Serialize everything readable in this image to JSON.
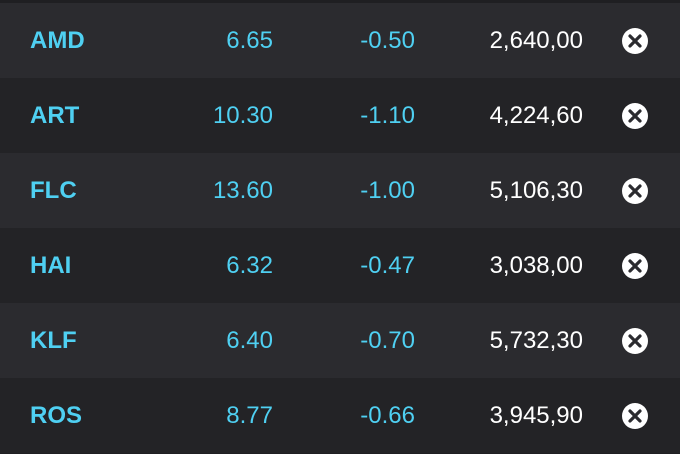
{
  "table": {
    "rows": [
      [
        "AMD",
        "6.65",
        "-0.50",
        "2,640,00"
      ],
      [
        "ART",
        "10.30",
        "-1.10",
        "4,224,60"
      ],
      [
        "FLC",
        "13.60",
        "-1.00",
        "5,106,30"
      ],
      [
        "HAI",
        "6.32",
        "-0.47",
        "3,038,00"
      ],
      [
        "KLF",
        "6.40",
        "-0.70",
        "5,732,30"
      ],
      [
        "ROS",
        "8.77",
        "-0.66",
        "3,945,90"
      ]
    ]
  }
}
